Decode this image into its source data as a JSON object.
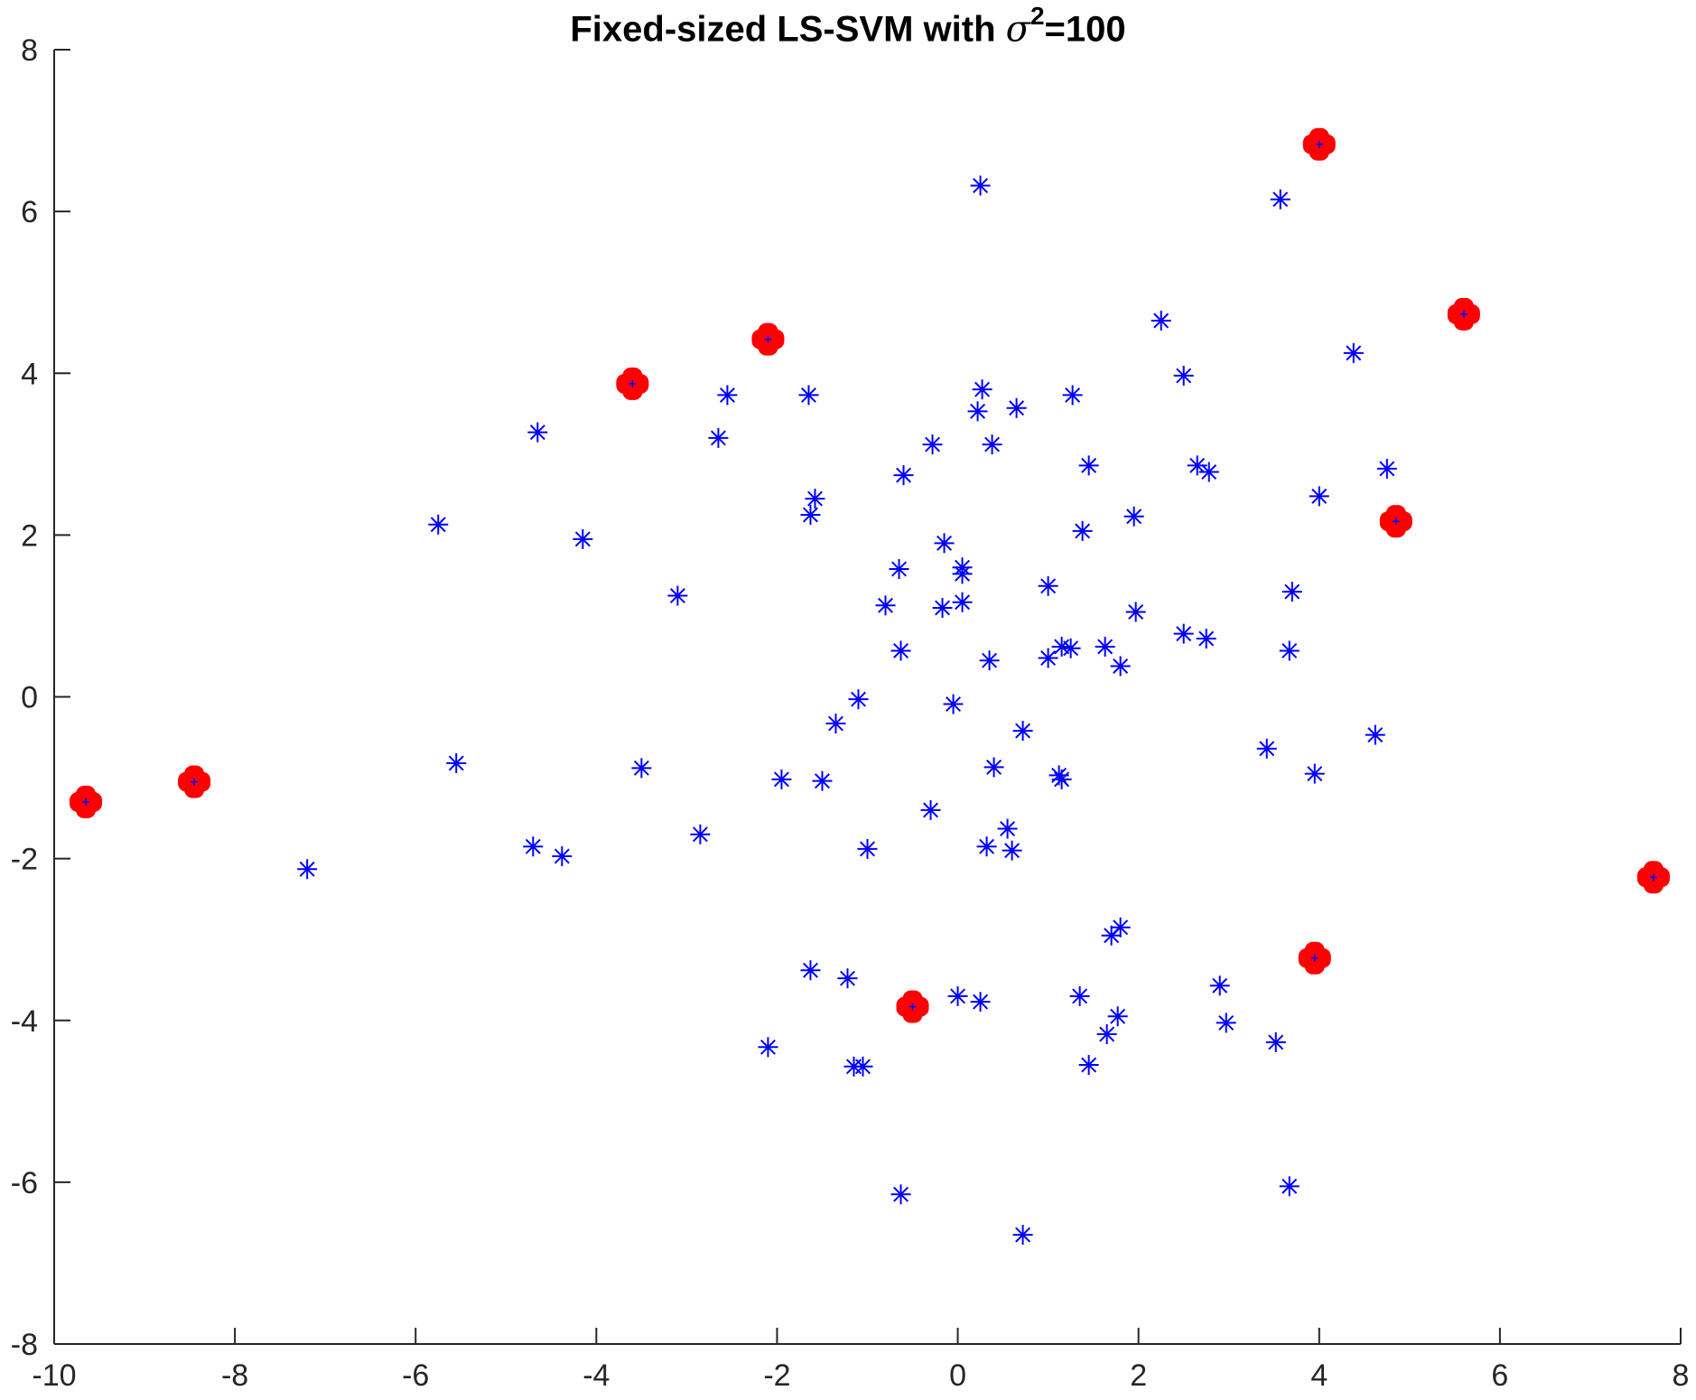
{
  "chart_data": {
    "type": "scatter",
    "title": "Fixed-sized LS-SVM with σ²=100",
    "title_parts": {
      "prefix": "Fixed-sized LS-SVM with ",
      "symbol": "σ",
      "exponent": "2",
      "suffix": "=100"
    },
    "xlabel": "",
    "ylabel": "",
    "xlim": [
      -10,
      8
    ],
    "ylim": [
      -8,
      8
    ],
    "xticks": [
      "-10",
      "-8",
      "-6",
      "-4",
      "-2",
      "0",
      "2",
      "4",
      "6",
      "8"
    ],
    "yticks": [
      "-8",
      "-6",
      "-4",
      "-2",
      "0",
      "2",
      "4",
      "6",
      "8"
    ],
    "grid": false,
    "colors": {
      "points": "#0000ff",
      "support_vectors": "#ff0000",
      "axes": "#262626"
    },
    "series": [
      {
        "marker": "asterisk",
        "points": [
          [
            0.25,
            6.32
          ],
          [
            3.57,
            6.15
          ],
          [
            2.25,
            4.65
          ],
          [
            4.38,
            4.25
          ],
          [
            2.5,
            3.97
          ],
          [
            -2.55,
            3.73
          ],
          [
            -1.65,
            3.73
          ],
          [
            0.27,
            3.8
          ],
          [
            1.27,
            3.73
          ],
          [
            0.65,
            3.57
          ],
          [
            0.22,
            3.53
          ],
          [
            -4.65,
            3.27
          ],
          [
            -2.65,
            3.2
          ],
          [
            -0.28,
            3.12
          ],
          [
            0.38,
            3.12
          ],
          [
            1.45,
            2.86
          ],
          [
            2.65,
            2.86
          ],
          [
            2.78,
            2.78
          ],
          [
            4.75,
            2.82
          ],
          [
            -0.6,
            2.74
          ],
          [
            -1.58,
            2.45
          ],
          [
            -1.63,
            2.25
          ],
          [
            4.0,
            2.48
          ],
          [
            -5.75,
            2.13
          ],
          [
            1.95,
            2.23
          ],
          [
            -4.15,
            1.95
          ],
          [
            1.38,
            2.05
          ],
          [
            -0.15,
            1.9
          ],
          [
            0.05,
            1.6
          ],
          [
            -0.65,
            1.58
          ],
          [
            0.05,
            1.52
          ],
          [
            1.0,
            1.37
          ],
          [
            3.7,
            1.3
          ],
          [
            -3.1,
            1.25
          ],
          [
            -0.8,
            1.13
          ],
          [
            -0.17,
            1.1
          ],
          [
            0.05,
            1.17
          ],
          [
            1.97,
            1.05
          ],
          [
            2.5,
            0.78
          ],
          [
            2.75,
            0.72
          ],
          [
            1.15,
            0.62
          ],
          [
            1.25,
            0.6
          ],
          [
            1.63,
            0.62
          ],
          [
            3.67,
            0.57
          ],
          [
            -0.63,
            0.57
          ],
          [
            1.0,
            0.48
          ],
          [
            0.35,
            0.45
          ],
          [
            1.8,
            0.38
          ],
          [
            -1.1,
            -0.03
          ],
          [
            -0.05,
            -0.09
          ],
          [
            -1.35,
            -0.33
          ],
          [
            0.72,
            -0.42
          ],
          [
            4.62,
            -0.47
          ],
          [
            3.42,
            -0.64
          ],
          [
            -5.55,
            -0.82
          ],
          [
            -3.5,
            -0.88
          ],
          [
            0.4,
            -0.87
          ],
          [
            3.95,
            -0.95
          ],
          [
            1.12,
            -0.97
          ],
          [
            1.15,
            -1.02
          ],
          [
            -1.95,
            -1.02
          ],
          [
            -1.5,
            -1.04
          ],
          [
            -0.3,
            -1.4
          ],
          [
            0.55,
            -1.63
          ],
          [
            -2.85,
            -1.7
          ],
          [
            -4.7,
            -1.85
          ],
          [
            0.32,
            -1.85
          ],
          [
            0.6,
            -1.9
          ],
          [
            -1.0,
            -1.88
          ],
          [
            -4.38,
            -1.97
          ],
          [
            -7.2,
            -2.13
          ],
          [
            1.8,
            -2.85
          ],
          [
            1.7,
            -2.95
          ],
          [
            -1.63,
            -3.38
          ],
          [
            -1.22,
            -3.48
          ],
          [
            2.9,
            -3.57
          ],
          [
            0.0,
            -3.7
          ],
          [
            0.25,
            -3.77
          ],
          [
            1.35,
            -3.7
          ],
          [
            1.77,
            -3.95
          ],
          [
            2.97,
            -4.03
          ],
          [
            1.65,
            -4.17
          ],
          [
            -2.1,
            -4.33
          ],
          [
            3.52,
            -4.27
          ],
          [
            1.45,
            -4.55
          ],
          [
            -1.15,
            -4.57
          ],
          [
            -1.05,
            -4.57
          ],
          [
            -0.63,
            -6.15
          ],
          [
            3.67,
            -6.05
          ],
          [
            0.72,
            -6.65
          ]
        ]
      },
      {
        "marker": "filled-plus",
        "points": [
          [
            4.0,
            6.83
          ],
          [
            5.6,
            4.73
          ],
          [
            -2.1,
            4.42
          ],
          [
            -3.6,
            3.87
          ],
          [
            4.85,
            2.17
          ],
          [
            -9.65,
            -1.3
          ],
          [
            -8.45,
            -1.05
          ],
          [
            7.7,
            -2.23
          ],
          [
            3.95,
            -3.23
          ],
          [
            -0.5,
            -3.83
          ]
        ]
      }
    ]
  }
}
